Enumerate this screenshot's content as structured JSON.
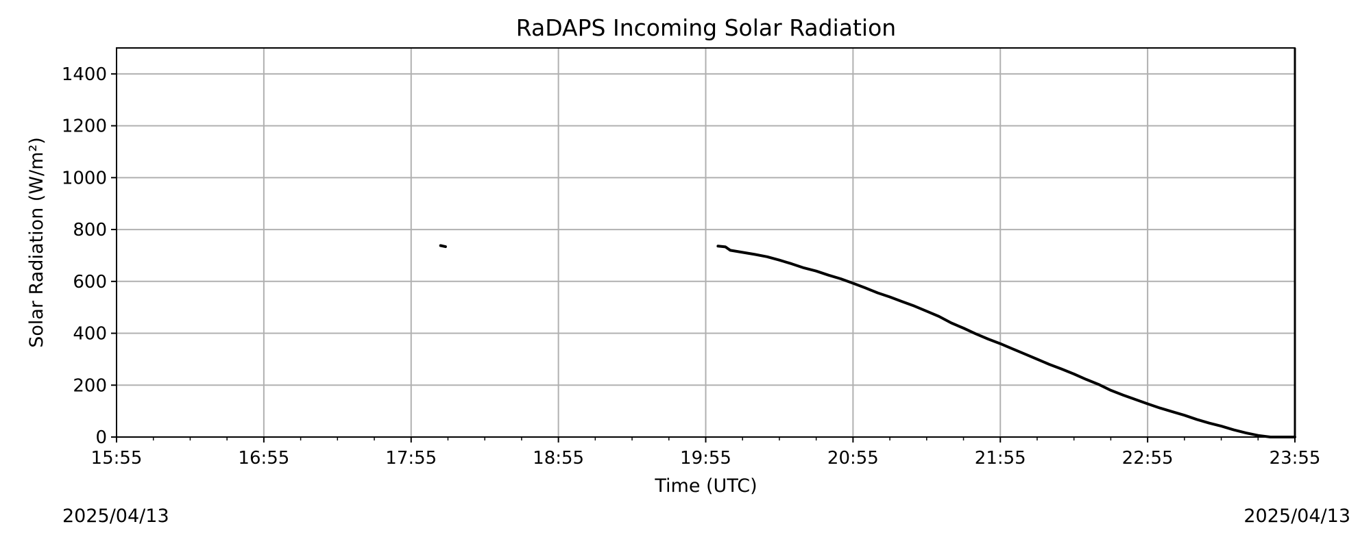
{
  "chart_data": {
    "type": "line",
    "title": "RaDAPS Incoming Solar Radiation",
    "xlabel": "Time (UTC)",
    "ylabel": "Solar Radiation (W/m²)",
    "xlim": [
      "15:55",
      "23:55"
    ],
    "ylim": [
      0,
      1500
    ],
    "x_ticks": [
      "15:55",
      "16:55",
      "17:55",
      "18:55",
      "19:55",
      "20:55",
      "21:55",
      "22:55",
      "23:55"
    ],
    "y_ticks": [
      0,
      200,
      400,
      600,
      800,
      1000,
      1200,
      1400
    ],
    "grid": true,
    "date_start": "2025/04/13",
    "date_end": "2025/04/13",
    "color": "#000000",
    "series": [
      {
        "segments": [
          [
            [
              "18:07",
              738
            ],
            [
              "18:09",
              734
            ]
          ],
          [
            [
              "20:00",
              736
            ],
            [
              "20:03",
              733
            ],
            [
              "20:05",
              720
            ],
            [
              "20:10",
              712
            ],
            [
              "20:15",
              704
            ],
            [
              "20:20",
              695
            ],
            [
              "20:25",
              682
            ],
            [
              "20:30",
              668
            ],
            [
              "20:35",
              652
            ],
            [
              "20:40",
              640
            ],
            [
              "20:45",
              624
            ],
            [
              "20:50",
              610
            ],
            [
              "20:55",
              593
            ],
            [
              "21:00",
              575
            ],
            [
              "21:05",
              556
            ],
            [
              "21:10",
              540
            ],
            [
              "21:15",
              522
            ],
            [
              "21:20",
              505
            ],
            [
              "21:25",
              485
            ],
            [
              "21:30",
              465
            ],
            [
              "21:35",
              440
            ],
            [
              "21:40",
              420
            ],
            [
              "21:45",
              398
            ],
            [
              "21:50",
              378
            ],
            [
              "21:55",
              360
            ],
            [
              "22:00",
              340
            ],
            [
              "22:05",
              320
            ],
            [
              "22:10",
              300
            ],
            [
              "22:15",
              280
            ],
            [
              "22:20",
              262
            ],
            [
              "22:25",
              243
            ],
            [
              "22:30",
              222
            ],
            [
              "22:35",
              203
            ],
            [
              "22:40",
              180
            ],
            [
              "22:45",
              162
            ],
            [
              "22:50",
              145
            ],
            [
              "22:55",
              128
            ],
            [
              "23:00",
              112
            ],
            [
              "23:05",
              98
            ],
            [
              "23:10",
              84
            ],
            [
              "23:15",
              68
            ],
            [
              "23:20",
              54
            ],
            [
              "23:25",
              42
            ],
            [
              "23:30",
              28
            ],
            [
              "23:35",
              16
            ],
            [
              "23:40",
              6
            ],
            [
              "23:45",
              0
            ],
            [
              "23:55",
              0
            ]
          ]
        ]
      }
    ]
  }
}
